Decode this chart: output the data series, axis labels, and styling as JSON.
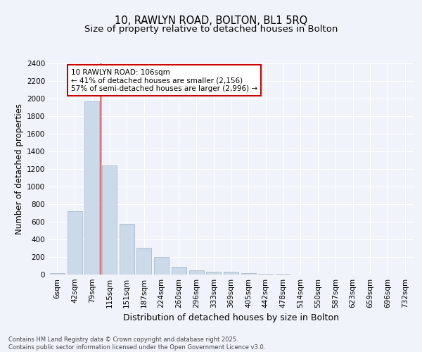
{
  "title1": "10, RAWLYN ROAD, BOLTON, BL1 5RQ",
  "title2": "Size of property relative to detached houses in Bolton",
  "xlabel": "Distribution of detached houses by size in Bolton",
  "ylabel": "Number of detached properties",
  "categories": [
    "6sqm",
    "42sqm",
    "79sqm",
    "115sqm",
    "151sqm",
    "187sqm",
    "224sqm",
    "260sqm",
    "296sqm",
    "333sqm",
    "369sqm",
    "405sqm",
    "442sqm",
    "478sqm",
    "514sqm",
    "550sqm",
    "587sqm",
    "623sqm",
    "659sqm",
    "696sqm",
    "732sqm"
  ],
  "values": [
    15,
    720,
    1970,
    1240,
    580,
    305,
    200,
    85,
    48,
    32,
    32,
    15,
    12,
    5,
    3,
    2,
    1,
    1,
    0,
    0,
    0
  ],
  "bar_color": "#ccd9e8",
  "bar_edgecolor": "#aabcce",
  "red_line_index": 3,
  "annotation_text": "10 RAWLYN ROAD: 106sqm\n← 41% of detached houses are smaller (2,156)\n57% of semi-detached houses are larger (2,996) →",
  "annotation_box_facecolor": "#ffffff",
  "annotation_box_edgecolor": "#cc0000",
  "ylim": [
    0,
    2400
  ],
  "yticks": [
    0,
    200,
    400,
    600,
    800,
    1000,
    1200,
    1400,
    1600,
    1800,
    2000,
    2200,
    2400
  ],
  "background_color": "#f0f4fa",
  "plot_background": "#f0f4fa",
  "grid_color": "#ffffff",
  "footer_text": "Contains HM Land Registry data © Crown copyright and database right 2025.\nContains public sector information licensed under the Open Government Licence v3.0.",
  "title_fontsize": 10.5,
  "subtitle_fontsize": 9.5,
  "tick_fontsize": 7.5,
  "ylabel_fontsize": 8.5,
  "xlabel_fontsize": 9,
  "annotation_fontsize": 7.5,
  "footer_fontsize": 6.0
}
